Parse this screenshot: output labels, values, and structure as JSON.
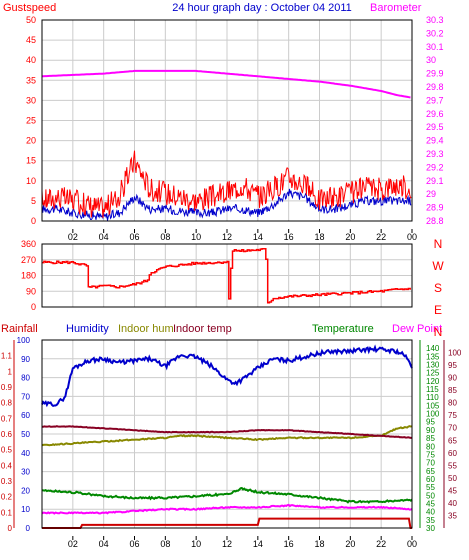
{
  "header": {
    "left_label": "Gustspeed",
    "title": "24 hour graph day : October 04 2011",
    "right_label": "Barometer"
  },
  "x_axis": {
    "ticks": [
      "02",
      "04",
      "06",
      "08",
      "10",
      "12",
      "14",
      "16",
      "18",
      "20",
      "22",
      "00"
    ]
  },
  "colors": {
    "gust": "#ff0000",
    "wind": "#0000cc",
    "barometer": "#ff00ff",
    "direction": "#ff0000",
    "rainfall": "#cc0000",
    "humidity": "#0000cc",
    "indoor_hum": "#888800",
    "indoor_temp": "#880022",
    "temperature": "#008800",
    "dewpoint": "#ff00ff",
    "grid": "#cccccc",
    "axis": "#000000",
    "header_title": "#0000cc"
  },
  "chart_data": [
    {
      "type": "line",
      "title": "24 hour graph day : October 04 2011",
      "x_hours_ticks": [
        "02",
        "04",
        "06",
        "08",
        "10",
        "12",
        "14",
        "16",
        "18",
        "20",
        "22",
        "00"
      ],
      "ylim_left": [
        0,
        50
      ],
      "yticks_left": [
        0,
        5,
        10,
        15,
        20,
        25,
        30,
        35,
        40,
        45,
        50
      ],
      "ylim_right": [
        28.8,
        30.3
      ],
      "yticks_right": [
        "28.8",
        "28.9",
        "29",
        "29.1",
        "29.2",
        "29.3",
        "29.4",
        "29.5",
        "29.6",
        "29.7",
        "29.8",
        "29.9",
        "30",
        "30.1",
        "30.2",
        "30.3"
      ],
      "grid": true,
      "series": [
        {
          "name": "Gustspeed",
          "axis": "left",
          "x": [
            0,
            1,
            2,
            3,
            4,
            5,
            6,
            7,
            8,
            9,
            10,
            11,
            12,
            13,
            14,
            15,
            16,
            17,
            18,
            19,
            20,
            21,
            22,
            23,
            24
          ],
          "y": [
            5,
            6,
            5,
            4,
            3,
            6,
            15,
            8,
            7,
            6,
            5,
            6,
            7,
            9,
            6,
            8,
            11,
            9,
            5,
            6,
            7,
            8,
            8,
            9,
            8
          ]
        },
        {
          "name": "Windspeed",
          "axis": "left",
          "x": [
            0,
            1,
            2,
            3,
            4,
            5,
            6,
            7,
            8,
            9,
            10,
            11,
            12,
            13,
            14,
            15,
            16,
            17,
            18,
            19,
            20,
            21,
            22,
            23,
            24
          ],
          "y": [
            3,
            3,
            2,
            1.5,
            1,
            2,
            6,
            3,
            3,
            2.5,
            2,
            2,
            3,
            3,
            2,
            4,
            7,
            6,
            3,
            3,
            4,
            5,
            5,
            5,
            5
          ]
        },
        {
          "name": "Barometer",
          "axis": "right",
          "x": [
            0,
            2,
            4,
            6,
            8,
            10,
            12,
            14,
            16,
            18,
            20,
            22,
            23,
            24
          ],
          "y": [
            29.88,
            29.89,
            29.9,
            29.92,
            29.92,
            29.92,
            29.9,
            29.88,
            29.86,
            29.84,
            29.81,
            29.77,
            29.74,
            29.72
          ]
        }
      ]
    },
    {
      "type": "line",
      "series_name": "Wind direction",
      "ylim_left": [
        0,
        360
      ],
      "yticks_left": [
        0,
        90,
        180,
        270,
        360
      ],
      "compass_labels": [
        "N",
        "W",
        "S",
        "E",
        "N"
      ],
      "grid": true,
      "x": [
        0,
        2,
        2.9,
        2.95,
        4,
        5,
        6,
        6.8,
        7,
        8,
        10,
        11.5,
        12,
        12.1,
        12.3,
        12.5,
        12.6,
        13,
        14.5,
        14.6,
        15,
        16,
        18,
        20,
        22,
        23,
        24
      ],
      "y": [
        255,
        255,
        235,
        110,
        120,
        115,
        130,
        150,
        195,
        230,
        250,
        255,
        260,
        10,
        320,
        330,
        320,
        320,
        330,
        20,
        50,
        60,
        70,
        80,
        90,
        100,
        105
      ]
    },
    {
      "type": "line",
      "legend": [
        "Rainfall",
        "Humidity",
        "Indoor hum",
        "Indoor temp",
        "Temperature",
        "Dew Point"
      ],
      "ylim_rainfall": [
        0,
        1.2
      ],
      "yticks_rainfall": [
        "0",
        "0.1",
        "0.2",
        "0.3",
        "0.4",
        "0.5",
        "0.6",
        "0.7",
        "0.8",
        "0.9",
        "1",
        "1.1"
      ],
      "ylim_humidity": [
        0,
        100
      ],
      "yticks_humidity": [
        0,
        10,
        20,
        30,
        40,
        50,
        60,
        70,
        80,
        90,
        100
      ],
      "ylim_temp_green": [
        30,
        145
      ],
      "yticks_temp_green": [
        30,
        35,
        40,
        45,
        50,
        55,
        60,
        65,
        70,
        75,
        80,
        85,
        90,
        95,
        100,
        105,
        110,
        115,
        120,
        125,
        130,
        135,
        140
      ],
      "ylim_temp_red": [
        30,
        105
      ],
      "yticks_temp_red": [
        35,
        40,
        45,
        50,
        55,
        60,
        65,
        70,
        75,
        80,
        85,
        90,
        95,
        100
      ],
      "grid": true,
      "series": [
        {
          "name": "Humidity",
          "axis": "humidity",
          "x": [
            0,
            1,
            1.5,
            2,
            3,
            4,
            5,
            6,
            7,
            8,
            9,
            10,
            11,
            12,
            12.5,
            13,
            14,
            15,
            16,
            17,
            18,
            19,
            20,
            21,
            22,
            23,
            23.5,
            24
          ],
          "y": [
            66,
            66,
            70,
            85,
            89,
            90,
            88,
            89,
            90,
            86,
            92,
            91,
            86,
            79,
            77,
            79,
            85,
            90,
            89,
            91,
            93,
            94,
            94,
            95,
            95,
            94,
            92,
            86
          ]
        },
        {
          "name": "Indoor hum",
          "axis": "humidity",
          "x": [
            0,
            2,
            4,
            6,
            8,
            9,
            10,
            12,
            14,
            16,
            18,
            20,
            22,
            23,
            24
          ],
          "y": [
            44,
            45,
            46,
            47,
            48,
            49,
            49,
            48,
            47,
            48,
            48,
            48,
            49,
            53,
            54
          ]
        },
        {
          "name": "Indoor temp",
          "axis": "humidity",
          "x": [
            0,
            2,
            4,
            6,
            8,
            10,
            12,
            14,
            16,
            18,
            20,
            22,
            24
          ],
          "y": [
            54,
            54,
            53,
            52,
            51,
            51,
            51,
            52,
            52,
            51,
            50,
            49,
            48
          ]
        },
        {
          "name": "Temperature",
          "axis": "humidity",
          "x": [
            0,
            2,
            4,
            6,
            8,
            10,
            12,
            13,
            14,
            16,
            18,
            20,
            22,
            24
          ],
          "y": [
            20,
            19,
            17,
            16,
            16,
            17,
            18,
            21,
            19,
            18,
            16,
            14,
            14,
            15
          ]
        },
        {
          "name": "Dew Point",
          "axis": "humidity",
          "x": [
            0,
            2,
            4,
            6,
            8,
            10,
            12,
            14,
            16,
            18,
            20,
            22,
            24
          ],
          "y": [
            8,
            8,
            8,
            9,
            10,
            10,
            11,
            11,
            12,
            11,
            11,
            11,
            10
          ]
        },
        {
          "name": "Rainfall",
          "axis": "rainfall",
          "x": [
            0,
            2.5,
            2.6,
            14,
            14.1,
            23.8,
            23.9,
            24
          ],
          "y": [
            0,
            0,
            0.02,
            0.02,
            0.06,
            0.06,
            0,
            0
          ]
        }
      ]
    }
  ]
}
